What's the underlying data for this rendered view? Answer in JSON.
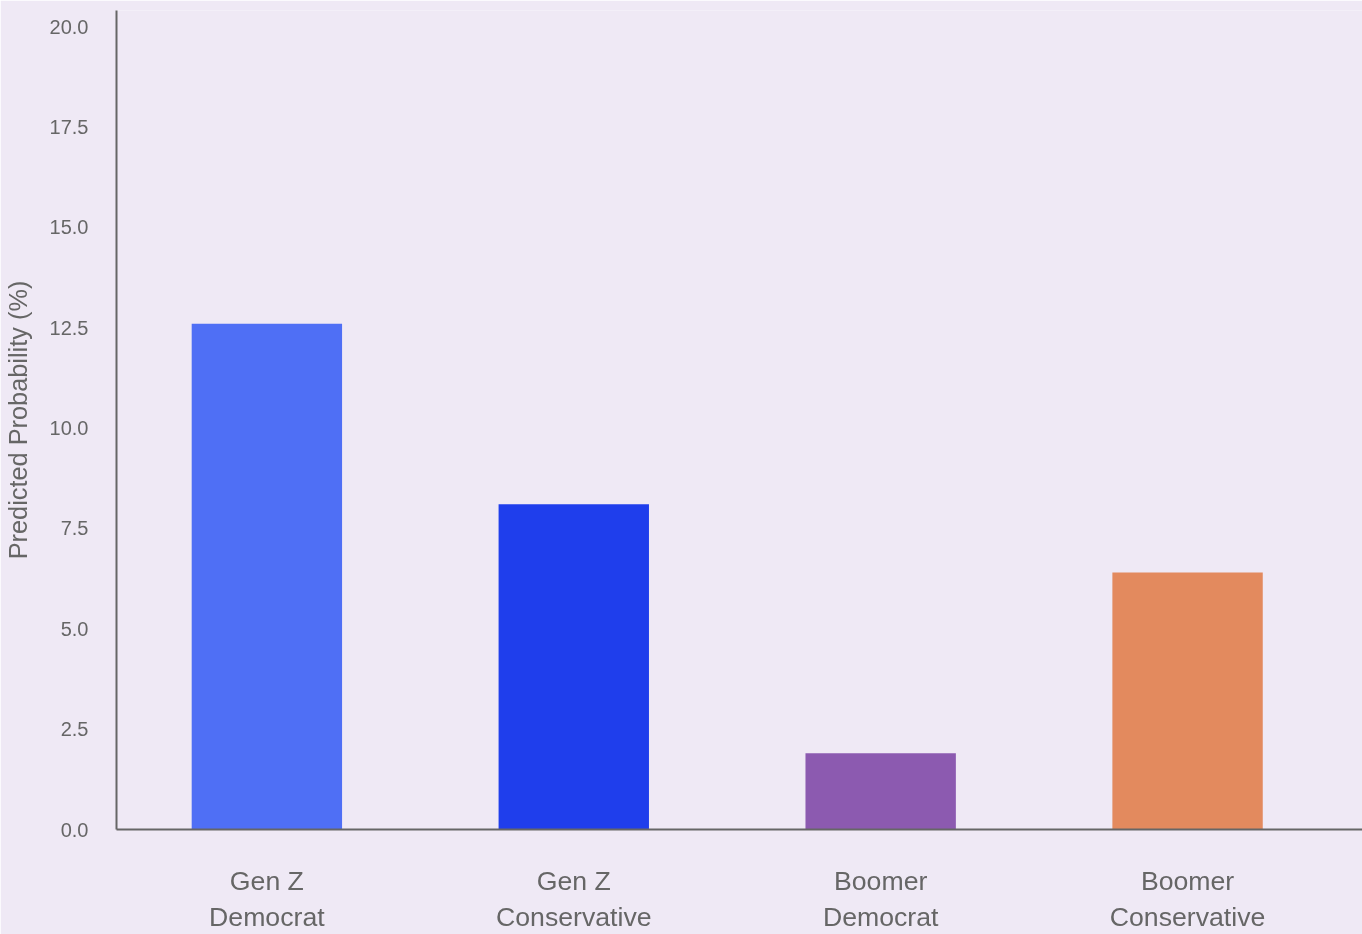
{
  "chart_data": {
    "type": "bar",
    "ylabel": "Predicted Probability (%)",
    "categories": [
      "Gen Z\nDemocrat",
      "Gen Z\nConservative",
      "Boomer\nDemocrat",
      "Boomer\nConservative"
    ],
    "values": [
      12.6,
      8.1,
      1.9,
      6.4
    ],
    "colors": [
      "#4f6ff5",
      "#1f3eec",
      "#8c5ab0",
      "#e38a5e"
    ],
    "ylim": [
      0,
      20.4
    ],
    "yticks": [
      {
        "value": 0,
        "label": "0.0"
      },
      2.5,
      {
        "value": 5,
        "label": "5.0"
      },
      7.5,
      {
        "value": 10,
        "label": "10.0"
      },
      12.5,
      {
        "value": 15,
        "label": "15.0"
      },
      17.5,
      {
        "value": 20,
        "label": "20.0"
      }
    ],
    "grid": false
  }
}
